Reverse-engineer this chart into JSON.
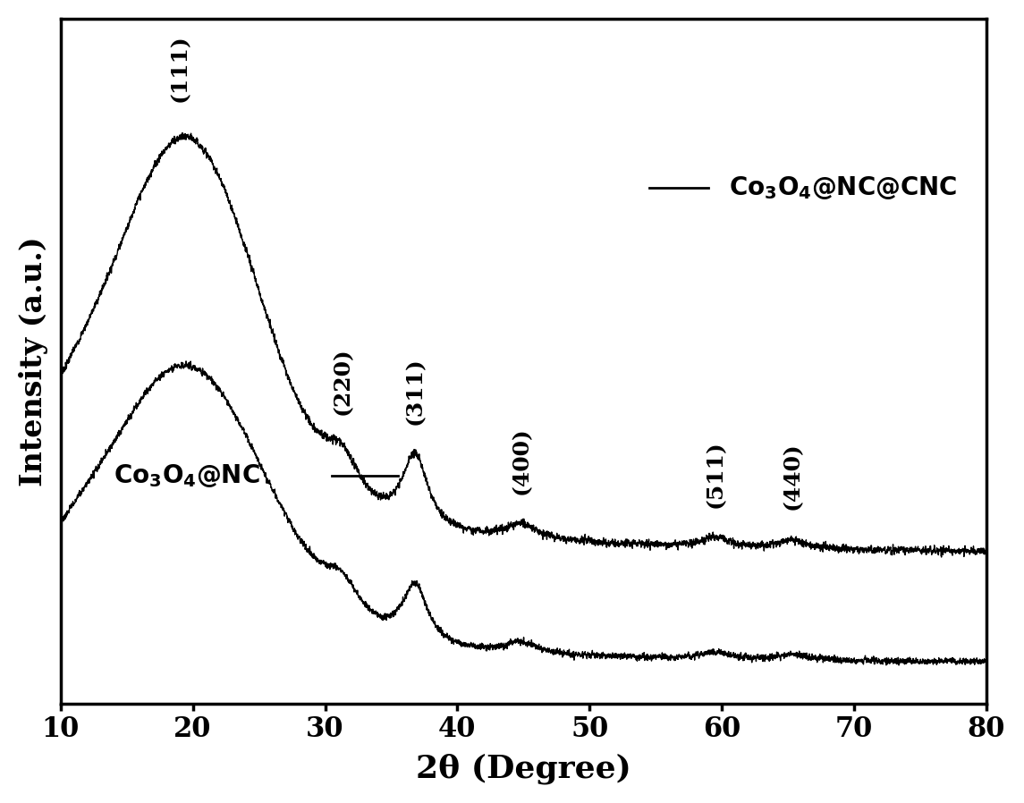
{
  "xmin": 10,
  "xmax": 80,
  "xlabel": "2θ (Degree)",
  "ylabel": "Intensity (a.u.)",
  "background_color": "#ffffff",
  "line_color": "#000000",
  "peak_positions": [
    19.0,
    31.3,
    36.8,
    44.8,
    59.5,
    65.3
  ],
  "peak_labels": [
    "(111)",
    "(220)",
    "(311)",
    "(400)",
    "(511)",
    "(440)"
  ],
  "xticks": [
    10,
    20,
    30,
    40,
    50,
    60,
    70,
    80
  ]
}
